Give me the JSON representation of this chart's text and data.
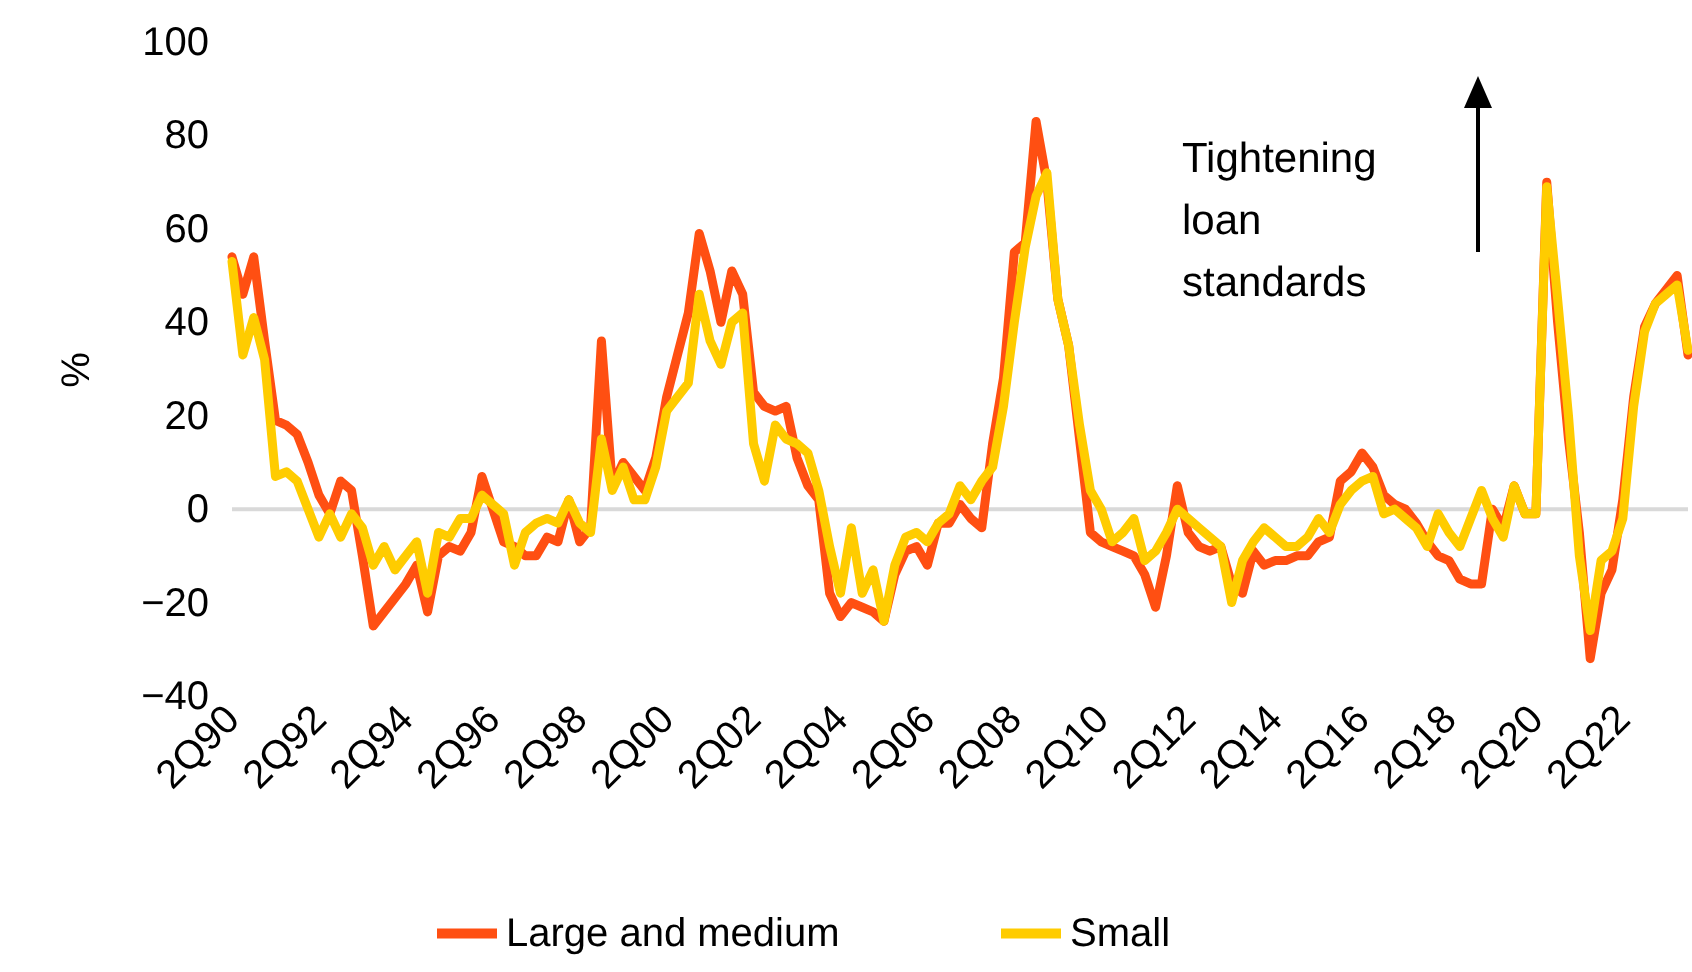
{
  "chart_data": {
    "type": "line",
    "ylabel": "%",
    "ylim": [
      -40,
      100
    ],
    "yticks": [
      -40,
      -20,
      0,
      20,
      40,
      60,
      80,
      100
    ],
    "grid": false,
    "legend": "bottom",
    "line_style": "solid",
    "marker": "none",
    "annotations": [
      "Tightening loan standards"
    ],
    "ref_lines": [
      {
        "axis": "y",
        "value": 0,
        "label": null,
        "color": "#d9d9d9"
      }
    ],
    "categories": [
      "2Q90",
      null,
      null,
      null,
      null,
      null,
      null,
      null,
      "2Q92",
      null,
      null,
      null,
      null,
      null,
      null,
      null,
      "2Q94",
      null,
      null,
      null,
      null,
      null,
      null,
      null,
      "2Q96",
      null,
      null,
      null,
      null,
      null,
      null,
      null,
      "2Q98",
      null,
      null,
      null,
      null,
      null,
      null,
      null,
      "2Q00",
      null,
      null,
      null,
      null,
      null,
      null,
      null,
      "2Q02",
      null,
      null,
      null,
      null,
      null,
      null,
      null,
      "2Q04",
      null,
      null,
      null,
      null,
      null,
      null,
      null,
      "2Q06",
      null,
      null,
      null,
      null,
      null,
      null,
      null,
      "2Q08",
      null,
      null,
      null,
      null,
      null,
      null,
      null,
      "2Q10",
      null,
      null,
      null,
      null,
      null,
      null,
      null,
      "2Q12",
      null,
      null,
      null,
      null,
      null,
      null,
      null,
      "2Q14",
      null,
      null,
      null,
      null,
      null,
      null,
      null,
      "2Q16",
      null,
      null,
      null,
      null,
      null,
      null,
      null,
      "2Q18",
      null,
      null,
      null,
      null,
      null,
      null,
      null,
      "2Q20",
      null,
      null,
      null,
      null,
      null,
      null,
      null,
      "2Q22",
      null,
      null,
      null,
      null,
      null,
      null
    ],
    "series": [
      {
        "name": "Large and medium",
        "color": "#ff4f12",
        "values": [
          54,
          46,
          54,
          36,
          19,
          18,
          16,
          10,
          3,
          -1,
          6,
          4,
          -10,
          -25,
          -22,
          -19,
          -16,
          -12,
          -22,
          -10,
          -8,
          -9,
          -5,
          7,
          0,
          -7,
          -8,
          -10,
          -10,
          -6,
          -7,
          2,
          -7,
          -4,
          36,
          5,
          10,
          7,
          4,
          11,
          24,
          33,
          42,
          59,
          51,
          40,
          51,
          46,
          25,
          22,
          21,
          22,
          11,
          5,
          2,
          -18,
          -23,
          -20,
          -21,
          -22,
          -24,
          -14,
          -9,
          -8,
          -12,
          -3,
          -3,
          1,
          -2,
          -4,
          14,
          28,
          55,
          57,
          83,
          70,
          45,
          35,
          15,
          -5,
          -7,
          -8,
          -9,
          -10,
          -14,
          -21,
          -10,
          5,
          -5,
          -8,
          -9,
          -8,
          -16,
          -18,
          -9,
          -12,
          -11,
          -11,
          -10,
          -10,
          -7,
          -6,
          6,
          8,
          12,
          9,
          3,
          1,
          0,
          -3,
          -7,
          -10,
          -11,
          -15,
          -16,
          -16,
          0,
          -4,
          5,
          -1,
          -1,
          70,
          40,
          15,
          -5,
          -32,
          -18,
          -13,
          2,
          24,
          39,
          44,
          47,
          50,
          33
        ]
      },
      {
        "name": "Small",
        "color": "#ffcc00",
        "values": [
          53,
          33,
          41,
          32,
          7,
          8,
          6,
          0,
          -6,
          -1,
          -6,
          -1,
          -4,
          -12,
          -8,
          -13,
          -10,
          -7,
          -18,
          -5,
          -6,
          -2,
          -2,
          3,
          1,
          -1,
          -12,
          -5,
          -3,
          -2,
          -3,
          2,
          -3,
          -5,
          15,
          4,
          9,
          2,
          2,
          9,
          21,
          24,
          27,
          46,
          36,
          31,
          40,
          42,
          14,
          6,
          18,
          15,
          14,
          12,
          4,
          -8,
          -18,
          -4,
          -18,
          -13,
          -24,
          -12,
          -6,
          -5,
          -7,
          -3,
          -1,
          5,
          2,
          6,
          9,
          22,
          40,
          56,
          67,
          72,
          45,
          35,
          18,
          4,
          0,
          -7,
          -5,
          -2,
          -11,
          -9,
          -5,
          0,
          -2,
          -4,
          -6,
          -8,
          -20,
          -11,
          -7,
          -4,
          -6,
          -8,
          -8,
          -6,
          -2,
          -5,
          1,
          4,
          6,
          7,
          -1,
          0,
          -2,
          -4,
          -8,
          -1,
          -5,
          -8,
          -2,
          4,
          -2,
          -6,
          5,
          -1,
          -1,
          69,
          45,
          20,
          -10,
          -26,
          -11,
          -9,
          -2,
          22,
          38,
          44,
          46,
          48,
          34
        ]
      }
    ]
  }
}
